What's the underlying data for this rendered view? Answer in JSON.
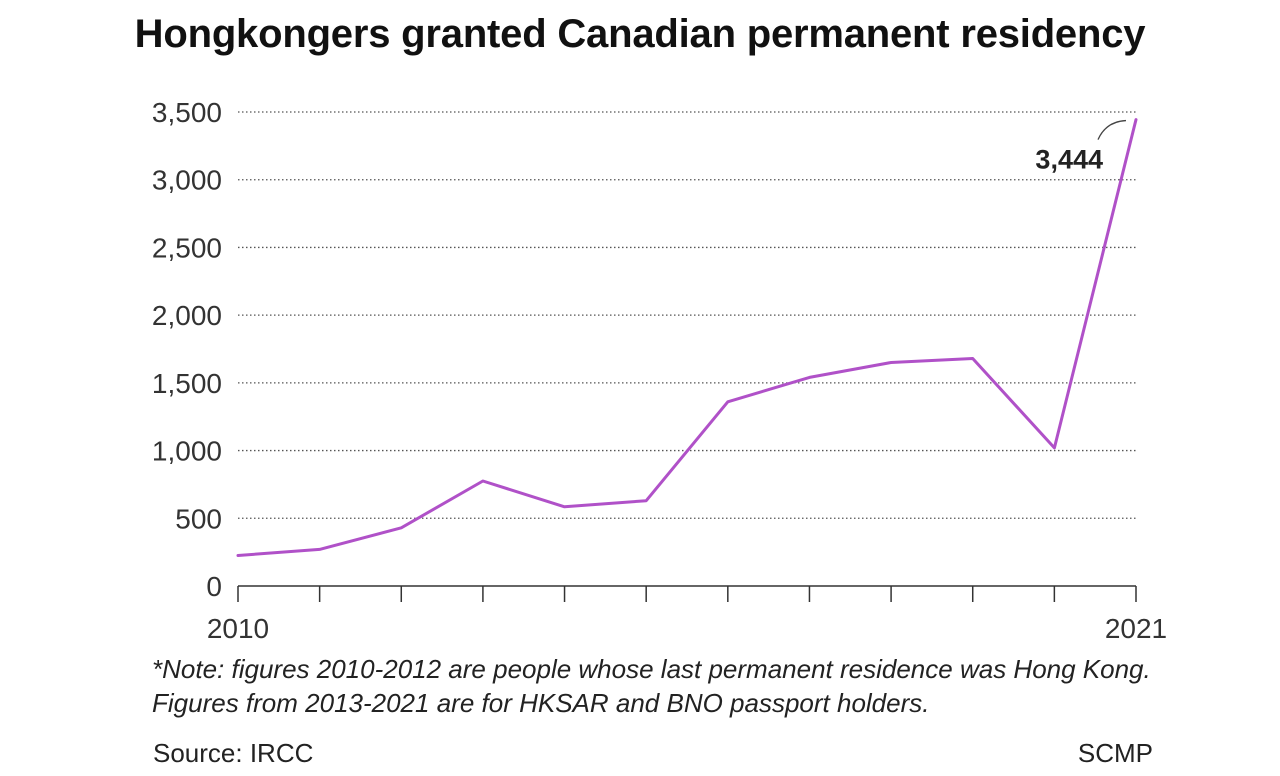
{
  "title": "Hongkongers granted Canadian permanent residency",
  "chart_data": {
    "type": "line",
    "title": "Hongkongers granted Canadian permanent residency",
    "x": [
      2010,
      2011,
      2012,
      2013,
      2014,
      2015,
      2016,
      2017,
      2018,
      2019,
      2020,
      2021
    ],
    "series": [
      {
        "values": [
          225,
          270,
          430,
          775,
          585,
          630,
          1360,
          1540,
          1650,
          1680,
          1020,
          3444
        ]
      }
    ],
    "ylim": [
      0,
      3500
    ],
    "y_ticks": [
      0,
      500,
      1000,
      1500,
      2000,
      2500,
      3000,
      3500
    ],
    "y_tick_labels": [
      "0",
      "500",
      "1,000",
      "1,500",
      "2,000",
      "2,500",
      "3,000",
      "3,500"
    ],
    "x_tick_labels": [
      "2010",
      "2021"
    ],
    "annotation": {
      "x": 2021,
      "text": "3,444"
    },
    "grid": "horizontal-dotted",
    "line_color": "#b051c8"
  },
  "note": [
    "*Note: figures 2010-2012 are people whose last permanent residence was Hong Kong.",
    "Figures from 2013-2021 are for HKSAR and BNO passport holders."
  ],
  "source": "Source: IRCC",
  "credit": "SCMP"
}
